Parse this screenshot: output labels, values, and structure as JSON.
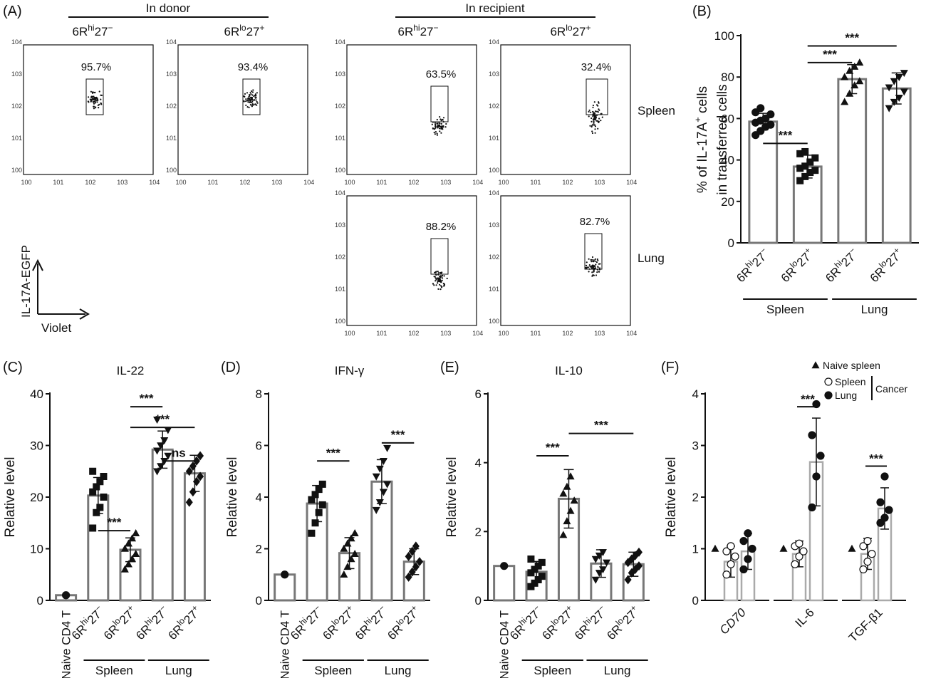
{
  "panel_letters": [
    "(A)",
    "(B)",
    "(C)",
    "(D)",
    "(E)",
    "(F)"
  ],
  "panel_a": {
    "donor_label": "In donor",
    "recipient_label": "In recipient",
    "col_hi": [
      "6R",
      "hi",
      "27",
      "−"
    ],
    "col_lo": [
      "6R",
      "lo",
      "27",
      "+"
    ],
    "row_labels": [
      "Spleen",
      "Lung"
    ],
    "y_axis_label": "IL-17A-EGFP",
    "x_axis_label": "Violet",
    "ticks": [
      "0",
      "1",
      "2",
      "3",
      "4"
    ],
    "tick_base": "10",
    "plots": [
      {
        "id": "donor-hi",
        "value": "95.7%"
      },
      {
        "id": "donor-lo",
        "value": "93.4%"
      },
      {
        "id": "spleen-hi",
        "value": "63.5%"
      },
      {
        "id": "spleen-lo",
        "value": "32.4%"
      },
      {
        "id": "lung-hi",
        "value": "88.2%"
      },
      {
        "id": "lung-lo",
        "value": "82.7%"
      }
    ]
  },
  "cat_hi": [
    "6R",
    "hi",
    "27",
    "−"
  ],
  "cat_lo": [
    "6R",
    "lo",
    "27",
    "+"
  ],
  "naive_label": "Naive CD4 T",
  "group_labels": [
    "Spleen",
    "Lung"
  ],
  "chart_data": [
    {
      "id": "B",
      "type": "bar",
      "ylabel_lines": [
        "% of IL-17A",
        "+",
        " cells",
        "in transferred cells"
      ],
      "ylim": [
        0,
        100
      ],
      "yticks": [
        0,
        20,
        40,
        60,
        80,
        100
      ],
      "categories": [
        "hi",
        "lo",
        "hi",
        "lo"
      ],
      "groups": [
        {
          "label": "Spleen",
          "from": 0,
          "to": 1
        },
        {
          "label": "Lung",
          "from": 2,
          "to": 3
        }
      ],
      "values": [
        58.5,
        36.8,
        79,
        74.5
      ],
      "errors": [
        4,
        5.5,
        7,
        7.5
      ],
      "markers": [
        "circle",
        "square",
        "triangle",
        "triangle-down"
      ],
      "points": [
        [
          52,
          54,
          56,
          57,
          58,
          59,
          60,
          62,
          63,
          65
        ],
        [
          30,
          32,
          34,
          35,
          36,
          37,
          39,
          41,
          43,
          44
        ],
        [
          68,
          72,
          76,
          78,
          80,
          83,
          85,
          87
        ],
        [
          65,
          68,
          70,
          73,
          75,
          78,
          80,
          82
        ]
      ],
      "sig": [
        {
          "from": 0,
          "to": 1,
          "y": 48,
          "label": "***"
        },
        {
          "from": 1,
          "to": 2,
          "y": 87,
          "label": "***"
        },
        {
          "from": 1,
          "to": 3,
          "y": 95,
          "label": "***"
        }
      ]
    },
    {
      "id": "C",
      "type": "bar",
      "title": "IL-22",
      "ylabel": "Relative level",
      "ylim": [
        0,
        40
      ],
      "yticks": [
        0,
        10,
        20,
        30,
        40
      ],
      "categories": [
        "naive",
        "hi",
        "lo",
        "hi",
        "lo"
      ],
      "groups": [
        {
          "label": "Spleen",
          "from": 1,
          "to": 2
        },
        {
          "label": "Lung",
          "from": 3,
          "to": 4
        }
      ],
      "values": [
        1,
        20.3,
        9.8,
        29.2,
        24.6
      ],
      "errors": [
        0,
        3.5,
        2.3,
        3.6,
        3.5
      ],
      "markers": [
        "circle",
        "square",
        "triangle",
        "triangle-down",
        "diamond"
      ],
      "points": [
        [
          1
        ],
        [
          14,
          17,
          18,
          20,
          21,
          22,
          23,
          24,
          25
        ],
        [
          6,
          7,
          8,
          9,
          10,
          11,
          12,
          13
        ],
        [
          25,
          26,
          27,
          28,
          29,
          30,
          31,
          33,
          35
        ],
        [
          19,
          21,
          23,
          24,
          25,
          26,
          27,
          28
        ]
      ],
      "sig": [
        {
          "from": 1,
          "to": 2,
          "y": 13.5,
          "label": "***"
        },
        {
          "from": 2,
          "to": 3,
          "y": 37.5,
          "label": "***"
        },
        {
          "from": 2,
          "to": 4,
          "y": 33.5,
          "label": "***"
        },
        {
          "from": 3,
          "to": 4,
          "y": 27,
          "label": "ns"
        }
      ]
    },
    {
      "id": "D",
      "type": "bar",
      "title": "IFN-γ",
      "ylabel": "Relative level",
      "ylim": [
        0,
        8
      ],
      "yticks": [
        0,
        2,
        4,
        6,
        8
      ],
      "categories": [
        "naive",
        "hi",
        "lo",
        "hi",
        "lo"
      ],
      "groups": [
        {
          "label": "Spleen",
          "from": 1,
          "to": 2
        },
        {
          "label": "Lung",
          "from": 3,
          "to": 4
        }
      ],
      "values": [
        1,
        3.75,
        1.83,
        4.6,
        1.5
      ],
      "errors": [
        0,
        0.7,
        0.6,
        0.85,
        0.5
      ],
      "markers": [
        "circle",
        "square",
        "triangle",
        "triangle-down",
        "diamond"
      ],
      "points": [
        [
          1
        ],
        [
          2.6,
          3,
          3.4,
          3.7,
          3.9,
          4.1,
          4.3,
          4.5
        ],
        [
          1,
          1.3,
          1.6,
          1.8,
          2,
          2.2,
          2.4,
          2.6
        ],
        [
          3.5,
          3.8,
          4.2,
          4.5,
          4.8,
          5.1,
          5.4,
          5.9
        ],
        [
          0.9,
          1.1,
          1.3,
          1.5,
          1.7,
          1.9,
          2.1
        ]
      ],
      "sig": [
        {
          "from": 1,
          "to": 2,
          "y": 5.4,
          "label": "***"
        },
        {
          "from": 3,
          "to": 4,
          "y": 6.1,
          "label": "***"
        }
      ]
    },
    {
      "id": "E",
      "type": "bar",
      "title": "IL-10",
      "ylabel": "Relative level",
      "ylim": [
        0,
        6
      ],
      "yticks": [
        0,
        2,
        4,
        6
      ],
      "categories": [
        "naive",
        "hi",
        "lo",
        "hi",
        "lo"
      ],
      "groups": [
        {
          "label": "Spleen",
          "from": 1,
          "to": 2
        },
        {
          "label": "Lung",
          "from": 3,
          "to": 4
        }
      ],
      "values": [
        1,
        0.83,
        2.95,
        1.07,
        1.05
      ],
      "errors": [
        0,
        0.3,
        0.85,
        0.4,
        0.35
      ],
      "markers": [
        "circle",
        "square",
        "triangle",
        "triangle-down",
        "diamond"
      ],
      "points": [
        [
          1
        ],
        [
          0.4,
          0.5,
          0.6,
          0.7,
          0.8,
          0.9,
          1,
          1.1,
          1.2
        ],
        [
          1.9,
          2.3,
          2.6,
          2.9,
          3.1,
          3.3,
          3.6
        ],
        [
          0.6,
          0.8,
          0.9,
          1.1,
          1.2,
          1.3,
          1.4
        ],
        [
          0.6,
          0.8,
          0.9,
          1,
          1.1,
          1.2,
          1.3,
          1.4
        ]
      ],
      "sig": [
        {
          "from": 1,
          "to": 2,
          "y": 4.2,
          "label": "***"
        },
        {
          "from": 2,
          "to": 4,
          "y": 4.85,
          "label": "***"
        }
      ]
    },
    {
      "id": "F",
      "type": "bar",
      "ylabel": "Relative level",
      "ylim": [
        0,
        4
      ],
      "yticks": [
        0,
        1,
        2,
        3,
        4
      ],
      "genes": [
        {
          "label": "CD70",
          "italic": true,
          "naive": 1,
          "spleen": 0.75,
          "lung": 0.95,
          "spleen_err": 0.3,
          "lung_err": 0.35,
          "spleen_pts": [
            0.5,
            0.7,
            0.85,
            0.95,
            1.05
          ],
          "lung_pts": [
            0.6,
            0.8,
            1,
            1.15,
            1.3
          ]
        },
        {
          "label": "IL-6",
          "italic": false,
          "naive": 1,
          "spleen": 0.9,
          "lung": 2.68,
          "spleen_err": 0.25,
          "lung_err": 0.85,
          "spleen_pts": [
            0.7,
            0.85,
            0.95,
            1.05,
            1.1
          ],
          "lung_pts": [
            1.8,
            2.4,
            2.8,
            3.2,
            3.8
          ]
        },
        {
          "label": "TGF-β1",
          "italic": false,
          "naive": 1,
          "spleen": 0.9,
          "lung": 1.78,
          "spleen_err": 0.3,
          "lung_err": 0.4,
          "spleen_pts": [
            0.6,
            0.75,
            0.9,
            1.05,
            1.15
          ],
          "lung_pts": [
            1.5,
            1.6,
            1.75,
            1.9,
            2.4
          ]
        }
      ],
      "sig": [
        {
          "gene": 1,
          "y": 3.75,
          "label": "***"
        },
        {
          "gene": 2,
          "y": 2.6,
          "label": "***"
        }
      ],
      "legend": {
        "naive": "Naive spleen",
        "spleen": "Spleen",
        "lung": "Lung",
        "cancer": "Cancer"
      }
    }
  ]
}
